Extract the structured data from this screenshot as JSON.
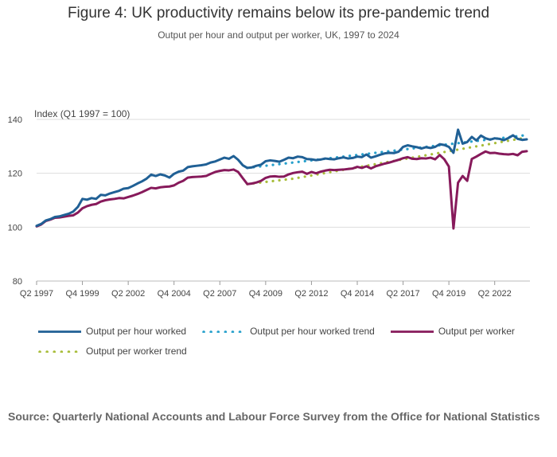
{
  "title": "Figure 4: UK productivity remains below its pre-pandemic trend",
  "subtitle": "Output per hour and output per worker, UK, 1997 to 2024",
  "source": "Source: Quarterly National Accounts and Labour Force Survey from the Office for National Statistics",
  "colors": {
    "hour": "#206095",
    "hour_trend": "#27a0cc",
    "worker": "#871a5b",
    "worker_trend": "#a8bd3a",
    "grid": "#dddddd",
    "axis_text": "#444444"
  },
  "chart_data": {
    "type": "line",
    "title": "Figure 4: UK productivity remains below its pre-pandemic trend",
    "ylabel": "Index (Q1 1997 = 100)",
    "xlabel": "",
    "ylim": [
      80,
      140
    ],
    "yticks": [
      80,
      100,
      120,
      140
    ],
    "start_quarter": "Q2 1997",
    "num_points": 108,
    "xticks": [
      {
        "index": 0,
        "label": "Q2 1997"
      },
      {
        "index": 10,
        "label": "Q4 1999"
      },
      {
        "index": 20,
        "label": "Q2 2002"
      },
      {
        "index": 30,
        "label": "Q4 2004"
      },
      {
        "index": 40,
        "label": "Q2 2007"
      },
      {
        "index": 50,
        "label": "Q4 2009"
      },
      {
        "index": 60,
        "label": "Q2 2012"
      },
      {
        "index": 70,
        "label": "Q4 2014"
      },
      {
        "index": 80,
        "label": "Q2 2017"
      },
      {
        "index": 90,
        "label": "Q4 2019"
      },
      {
        "index": 100,
        "label": "Q2 2022"
      }
    ],
    "series": [
      {
        "name": "Output per hour worked",
        "style": "solid",
        "start_index": 0,
        "values": [
          100.5,
          101.2,
          102.5,
          103.0,
          103.8,
          104.0,
          104.5,
          105.0,
          105.8,
          107.5,
          110.5,
          110.2,
          110.8,
          110.5,
          112.0,
          111.8,
          112.5,
          113.0,
          113.5,
          114.3,
          114.5,
          115.3,
          116.2,
          117.0,
          118.0,
          119.5,
          119.0,
          119.6,
          119.2,
          118.4,
          119.8,
          120.6,
          121.0,
          122.3,
          122.6,
          122.8,
          123.0,
          123.3,
          124.0,
          124.4,
          125.1,
          125.8,
          125.4,
          126.4,
          125.0,
          123.0,
          122.0,
          122.2,
          122.8,
          123.2,
          124.5,
          124.8,
          124.6,
          124.3,
          125.0,
          125.8,
          125.6,
          126.2,
          126.0,
          125.3,
          125.2,
          124.9,
          125.1,
          125.5,
          125.3,
          125.2,
          125.6,
          125.9,
          125.5,
          125.7,
          126.2,
          126.0,
          127.0,
          125.8,
          126.3,
          126.9,
          127.4,
          127.6,
          127.5,
          128.0,
          129.8,
          130.4,
          130.0,
          129.7,
          129.2,
          129.7,
          129.4,
          129.8,
          130.8,
          130.5,
          129.8,
          127.6,
          136.2,
          131.0,
          131.6,
          133.5,
          132.2,
          134.0,
          133.0,
          132.5,
          133.0,
          132.8,
          132.3,
          133.1,
          134.1,
          132.8,
          132.4,
          132.6
        ]
      },
      {
        "name": "Output per hour worked trend",
        "style": "dotted",
        "start_index": 46,
        "values": [
          122.0,
          122.2,
          122.4,
          122.6,
          122.8,
          123.0,
          123.2,
          123.4,
          123.6,
          123.8,
          124.0,
          124.2,
          124.4,
          124.6,
          124.8,
          125.0,
          125.2,
          125.4,
          125.6,
          125.8,
          126.0,
          126.2,
          126.4,
          126.6,
          126.8,
          127.0,
          127.2,
          127.4,
          127.6,
          127.8,
          128.0,
          128.2,
          128.4,
          128.6,
          128.8,
          129.0,
          129.2,
          129.4,
          129.6,
          129.8,
          130.0,
          130.2,
          130.4,
          130.6,
          130.8,
          131.0,
          131.2,
          131.4,
          131.6,
          131.8,
          132.0,
          132.2,
          132.4,
          132.6,
          132.8,
          133.0,
          133.2,
          133.4,
          133.6,
          133.8,
          134.0,
          134.2
        ]
      },
      {
        "name": "Output per worker",
        "style": "solid",
        "start_index": 0,
        "values": [
          100.3,
          101.0,
          102.3,
          102.8,
          103.5,
          103.6,
          103.9,
          104.2,
          104.4,
          105.4,
          107.0,
          107.8,
          108.3,
          108.6,
          109.5,
          110.0,
          110.3,
          110.5,
          110.8,
          110.7,
          111.2,
          111.7,
          112.3,
          113.0,
          113.8,
          114.6,
          114.4,
          114.8,
          115.0,
          115.1,
          115.5,
          116.5,
          117.2,
          118.4,
          118.6,
          118.7,
          118.8,
          119.0,
          119.8,
          120.5,
          120.9,
          121.2,
          121.1,
          121.4,
          120.5,
          118.2,
          116.0,
          116.2,
          116.6,
          117.2,
          118.3,
          118.8,
          118.9,
          118.7,
          118.8,
          119.6,
          120.1,
          120.4,
          120.6,
          119.8,
          120.5,
          120.0,
          120.6,
          121.0,
          121.3,
          121.2,
          121.3,
          121.4,
          121.6,
          121.8,
          122.4,
          122.0,
          122.6,
          121.8,
          122.6,
          123.1,
          123.6,
          124.0,
          124.5,
          125.0,
          125.6,
          126.0,
          125.4,
          125.3,
          125.6,
          125.5,
          125.8,
          125.2,
          126.8,
          125.2,
          122.5,
          99.5,
          116.5,
          119.0,
          117.2,
          125.3,
          126.2,
          127.2,
          128.1,
          127.5,
          127.6,
          127.3,
          127.1,
          127.0,
          127.2,
          126.7,
          128.0,
          128.2
        ]
      },
      {
        "name": "Output per worker trend",
        "style": "dotted",
        "start_index": 46,
        "values": [
          116.0,
          116.2,
          116.4,
          116.6,
          116.8,
          117.0,
          117.2,
          117.4,
          117.6,
          117.8,
          118.0,
          118.3,
          118.6,
          118.9,
          119.2,
          119.5,
          119.8,
          120.1,
          120.4,
          120.7,
          121.0,
          121.3,
          121.6,
          121.9,
          122.2,
          122.5,
          122.8,
          123.1,
          123.4,
          123.7,
          124.0,
          124.3,
          124.6,
          124.9,
          125.2,
          125.5,
          125.8,
          126.1,
          126.4,
          126.7,
          127.0,
          127.3,
          127.6,
          127.9,
          128.2,
          128.5,
          128.8,
          129.1,
          129.4,
          129.7,
          130.0,
          130.3,
          130.6,
          130.9,
          131.2,
          131.5,
          131.8,
          132.1,
          132.4,
          132.7,
          133.0,
          133.3
        ]
      }
    ],
    "legend": [
      "Output per hour worked",
      "Output per hour worked trend",
      "Output per worker",
      "Output per worker trend"
    ]
  }
}
